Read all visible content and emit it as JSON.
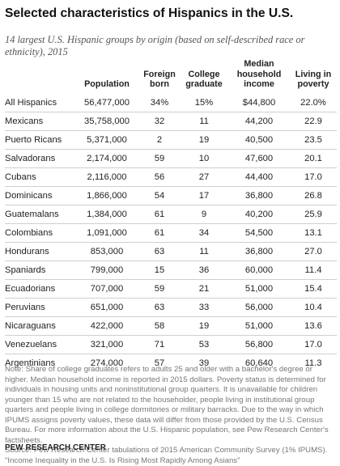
{
  "title": "Selected characteristics of Hispanics in the U.S.",
  "subtitle": "14 largest U.S. Hispanic groups by origin (based on self-described race or ethnicity), 2015",
  "table": {
    "headers": [
      "",
      "Population",
      "Foreign born",
      "College graduate",
      "Median household income",
      "Living in poverty"
    ],
    "rows": [
      [
        "All Hispanics",
        "56,477,000",
        "34%",
        "15%",
        "$44,800",
        "22.0%"
      ],
      [
        "Mexicans",
        "35,758,000",
        "32",
        "11",
        "44,200",
        "22.9"
      ],
      [
        "Puerto Ricans",
        "5,371,000",
        "2",
        "19",
        "40,500",
        "23.5"
      ],
      [
        "Salvadorans",
        "2,174,000",
        "59",
        "10",
        "47,600",
        "20.1"
      ],
      [
        "Cubans",
        "2,116,000",
        "56",
        "27",
        "44,400",
        "17.0"
      ],
      [
        "Dominicans",
        "1,866,000",
        "54",
        "17",
        "36,800",
        "26.8"
      ],
      [
        "Guatemalans",
        "1,384,000",
        "61",
        "9",
        "40,200",
        "25.9"
      ],
      [
        "Colombians",
        "1,091,000",
        "61",
        "34",
        "54,500",
        "13.1"
      ],
      [
        "Hondurans",
        "853,000",
        "63",
        "11",
        "36,800",
        "27.0"
      ],
      [
        "Spaniards",
        "799,000",
        "15",
        "36",
        "60,000",
        "11.4"
      ],
      [
        "Ecuadorians",
        "707,000",
        "59",
        "21",
        "51,000",
        "15.4"
      ],
      [
        "Peruvians",
        "651,000",
        "63",
        "33",
        "56,000",
        "10.4"
      ],
      [
        "Nicaraguans",
        "422,000",
        "58",
        "19",
        "51,000",
        "13.6"
      ],
      [
        "Venezuelans",
        "321,000",
        "71",
        "53",
        "56,800",
        "17.0"
      ],
      [
        "Argentinians",
        "274,000",
        "57",
        "39",
        "60,640",
        "11.3"
      ]
    ]
  },
  "note": "Note: Share of college graduates refers to adults 25 and older with a bachelor's degree or higher. Median household income is reported in 2015 dollars. Poverty status is determined for individuals in housing units and noninstitutional group quarters. It is unavailable for children younger than 15 who are not related to the householder, people living in institutional group quarters and people living in college dormitories or military barracks. Due to the way in which IPUMS assigns poverty values, these data will differ from those provided by the U.S. Census Bureau. For more information about the U.S. Hispanic population, see Pew Research Center's factsheets.",
  "source": "Source: Pew Research Center tabulations of 2015 American Community Survey (1% IPUMS). \"Income Inequality in the U.S. Is Rising Most Rapidly Among Asians\"",
  "brand": "PEW RESEARCH CENTER"
}
